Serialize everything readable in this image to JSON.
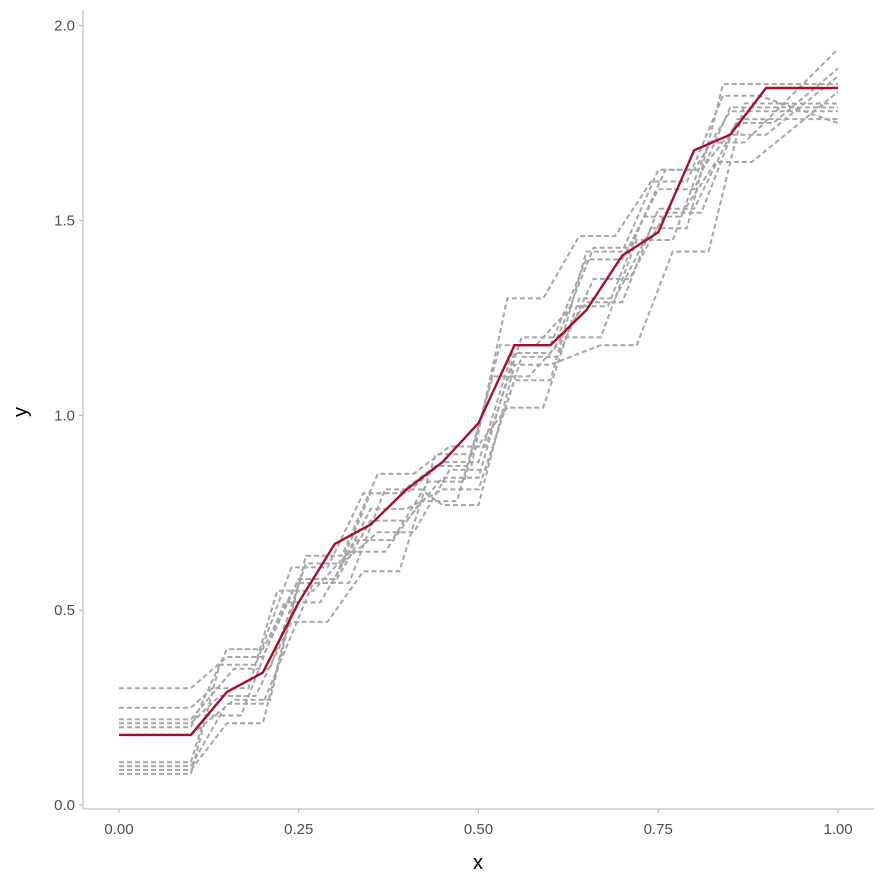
{
  "chart_data": {
    "type": "line",
    "title": "",
    "xlabel": "x",
    "ylabel": "y",
    "xlim": [
      -0.05,
      1.05
    ],
    "ylim": [
      -0.01,
      2.04
    ],
    "xticks": [
      0,
      0.25,
      0.5,
      0.75,
      1
    ],
    "xtick_labels": [
      "0.00",
      "0.25",
      "0.50",
      "0.75",
      "1.00"
    ],
    "yticks": [
      0,
      0.5,
      1,
      1.5,
      2
    ],
    "ytick_labels": [
      "0.0",
      "0.5",
      "1.0",
      "1.5",
      "2.0"
    ],
    "grid": false,
    "legend": "none",
    "colors": {
      "samples": "#a6a6a6",
      "mean": "#a50f2d"
    },
    "samples": [
      {
        "x": [
          0,
          0.1,
          0.15,
          0.2,
          0.25,
          0.3,
          0.35,
          0.4,
          0.45,
          0.5,
          0.55,
          0.6,
          0.65,
          0.7,
          0.75,
          0.8,
          0.85,
          0.9,
          1.0
        ],
        "y": [
          0.3,
          0.3,
          0.38,
          0.38,
          0.58,
          0.58,
          0.8,
          0.8,
          0.88,
          0.88,
          1.18,
          1.18,
          1.4,
          1.4,
          1.58,
          1.58,
          1.79,
          1.79,
          1.79
        ]
      },
      {
        "x": [
          0,
          0.1,
          0.13,
          0.18,
          0.22,
          0.27,
          0.32,
          0.37,
          0.42,
          0.47,
          0.52,
          0.57,
          0.62,
          0.67,
          0.72,
          0.77,
          0.82,
          0.87,
          1.0
        ],
        "y": [
          0.25,
          0.25,
          0.3,
          0.3,
          0.55,
          0.55,
          0.65,
          0.65,
          0.78,
          0.78,
          1.1,
          1.1,
          1.2,
          1.2,
          1.45,
          1.45,
          1.7,
          1.7,
          1.94
        ]
      },
      {
        "x": [
          0,
          0.1,
          0.16,
          0.21,
          0.26,
          0.31,
          0.36,
          0.41,
          0.46,
          0.51,
          0.56,
          0.61,
          0.66,
          0.71,
          0.76,
          0.81,
          0.86,
          0.91,
          1.0
        ],
        "y": [
          0.22,
          0.22,
          0.35,
          0.35,
          0.62,
          0.62,
          0.7,
          0.7,
          0.86,
          0.86,
          1.15,
          1.15,
          1.35,
          1.35,
          1.52,
          1.52,
          1.76,
          1.76,
          1.76
        ]
      },
      {
        "x": [
          0,
          0.1,
          0.14,
          0.19,
          0.24,
          0.29,
          0.34,
          0.39,
          0.44,
          0.49,
          0.54,
          0.59,
          0.64,
          0.69,
          0.74,
          0.79,
          0.84,
          0.89,
          1.0
        ],
        "y": [
          0.21,
          0.21,
          0.28,
          0.28,
          0.47,
          0.47,
          0.6,
          0.6,
          0.9,
          0.9,
          1.02,
          1.02,
          1.3,
          1.3,
          1.48,
          1.48,
          1.85,
          1.85,
          1.85
        ]
      },
      {
        "x": [
          0,
          0.1,
          0.15,
          0.2,
          0.25,
          0.3,
          0.35,
          0.4,
          0.45,
          0.5,
          0.55,
          0.6,
          0.65,
          0.7,
          0.75,
          0.8,
          0.85,
          0.9,
          1.0
        ],
        "y": [
          0.2,
          0.2,
          0.4,
          0.4,
          0.58,
          0.58,
          0.76,
          0.76,
          0.81,
          0.81,
          1.09,
          1.09,
          1.42,
          1.42,
          1.63,
          1.63,
          1.78,
          1.78,
          1.78
        ]
      },
      {
        "x": [
          0,
          0.1,
          0.12,
          0.17,
          0.23,
          0.28,
          0.33,
          0.38,
          0.43,
          0.48,
          0.53,
          0.58,
          0.63,
          0.68,
          0.73,
          0.78,
          0.83,
          0.88,
          1.0
        ],
        "y": [
          0.11,
          0.11,
          0.23,
          0.23,
          0.52,
          0.52,
          0.68,
          0.68,
          0.83,
          0.83,
          1.18,
          1.18,
          1.28,
          1.28,
          1.51,
          1.51,
          1.65,
          1.65,
          1.83
        ]
      },
      {
        "x": [
          0,
          0.1,
          0.15,
          0.2,
          0.27,
          0.32,
          0.37,
          0.42,
          0.45,
          0.5,
          0.55,
          0.6,
          0.67,
          0.72,
          0.77,
          0.82,
          0.87,
          0.92,
          1.0
        ],
        "y": [
          0.1,
          0.1,
          0.26,
          0.26,
          0.57,
          0.57,
          0.81,
          0.81,
          0.77,
          0.77,
          1.13,
          1.13,
          1.18,
          1.18,
          1.42,
          1.42,
          1.8,
          1.8,
          1.8
        ]
      },
      {
        "x": [
          0,
          0.1,
          0.15,
          0.2,
          0.25,
          0.3,
          0.35,
          0.4,
          0.45,
          0.5,
          0.55,
          0.6,
          0.65,
          0.7,
          0.75,
          0.8,
          0.85,
          0.9,
          1.0
        ],
        "y": [
          0.09,
          0.09,
          0.21,
          0.21,
          0.57,
          0.57,
          0.73,
          0.73,
          0.84,
          0.84,
          1.16,
          1.16,
          1.29,
          1.29,
          1.53,
          1.53,
          1.72,
          1.72,
          1.87
        ]
      },
      {
        "x": [
          0,
          0.1,
          0.14,
          0.19,
          0.24,
          0.29,
          0.34,
          0.39,
          0.44,
          0.49,
          0.54,
          0.59,
          0.64,
          0.69,
          0.74,
          0.79,
          0.84,
          0.89,
          1.0
        ],
        "y": [
          0.08,
          0.08,
          0.36,
          0.36,
          0.61,
          0.61,
          0.8,
          0.8,
          0.87,
          0.87,
          1.3,
          1.3,
          1.46,
          1.46,
          1.6,
          1.6,
          1.82,
          1.82,
          1.75
        ]
      },
      {
        "x": [
          0,
          0.1,
          0.16,
          0.21,
          0.26,
          0.31,
          0.36,
          0.41,
          0.46,
          0.51,
          0.56,
          0.61,
          0.66,
          0.71,
          0.76,
          0.81,
          0.86,
          0.91,
          1.0
        ],
        "y": [
          0.18,
          0.18,
          0.27,
          0.27,
          0.64,
          0.64,
          0.85,
          0.85,
          0.92,
          0.92,
          1.2,
          1.2,
          1.43,
          1.43,
          1.63,
          1.63,
          1.75,
          1.75,
          1.89
        ]
      }
    ],
    "mean": {
      "x": [
        0,
        0.1,
        0.15,
        0.2,
        0.25,
        0.3,
        0.35,
        0.4,
        0.45,
        0.5,
        0.55,
        0.6,
        0.65,
        0.7,
        0.75,
        0.8,
        0.85,
        0.9,
        1.0
      ],
      "y": [
        0.18,
        0.18,
        0.29,
        0.34,
        0.52,
        0.67,
        0.72,
        0.81,
        0.88,
        0.98,
        1.18,
        1.18,
        1.27,
        1.41,
        1.47,
        1.68,
        1.72,
        1.84,
        1.84
      ]
    }
  }
}
